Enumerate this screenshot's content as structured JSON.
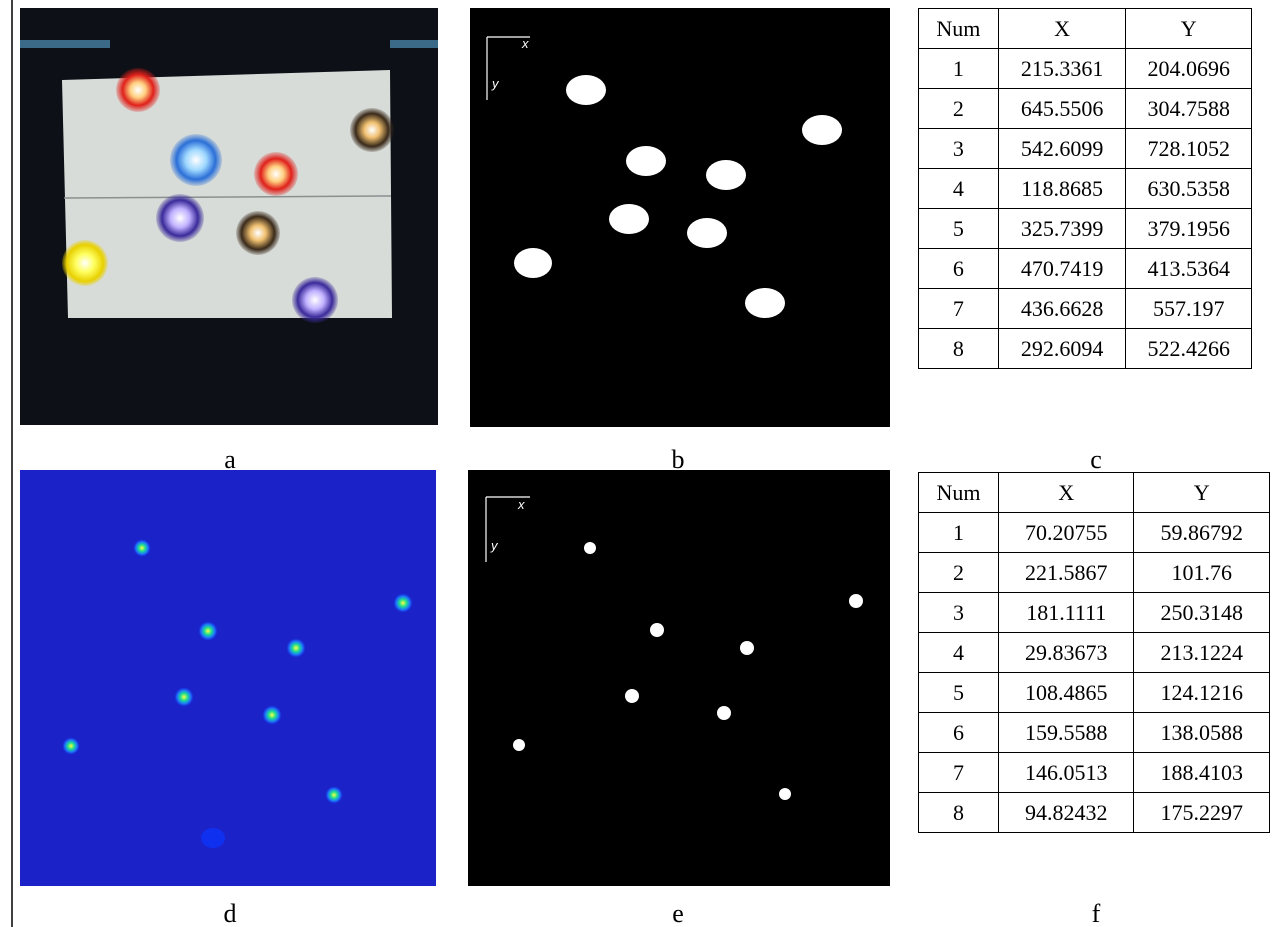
{
  "panels": {
    "a": {
      "label": "a"
    },
    "b": {
      "label": "b",
      "x_axis": "x",
      "y_axis": "y"
    },
    "c": {
      "label": "c"
    },
    "d": {
      "label": "d"
    },
    "e": {
      "label": "e",
      "x_axis": "x",
      "y_axis": "y"
    },
    "f": {
      "label": "f"
    }
  },
  "tables": {
    "c": {
      "header": [
        "Num",
        "X",
        "Y"
      ],
      "rows": [
        [
          "1",
          "215.3361",
          "204.0696"
        ],
        [
          "2",
          "645.5506",
          "304.7588"
        ],
        [
          "3",
          "542.6099",
          "728.1052"
        ],
        [
          "4",
          "118.8685",
          "630.5358"
        ],
        [
          "5",
          "325.7399",
          "379.1956"
        ],
        [
          "6",
          "470.7419",
          "413.5364"
        ],
        [
          "7",
          "436.6628",
          "557.197"
        ],
        [
          "8",
          "292.6094",
          "522.4266"
        ]
      ]
    },
    "f": {
      "header": [
        "Num",
        "X",
        "Y"
      ],
      "rows": [
        [
          "1",
          "70.20755",
          "59.86792"
        ],
        [
          "2",
          "221.5867",
          "101.76"
        ],
        [
          "3",
          "181.1111",
          "250.3148"
        ],
        [
          "4",
          "29.83673",
          "213.1224"
        ],
        [
          "5",
          "108.4865",
          "124.1216"
        ],
        [
          "6",
          "159.5588",
          "138.0588"
        ],
        [
          "7",
          "146.0513",
          "188.4103"
        ],
        [
          "8",
          "94.82432",
          "175.2297"
        ]
      ]
    }
  }
}
